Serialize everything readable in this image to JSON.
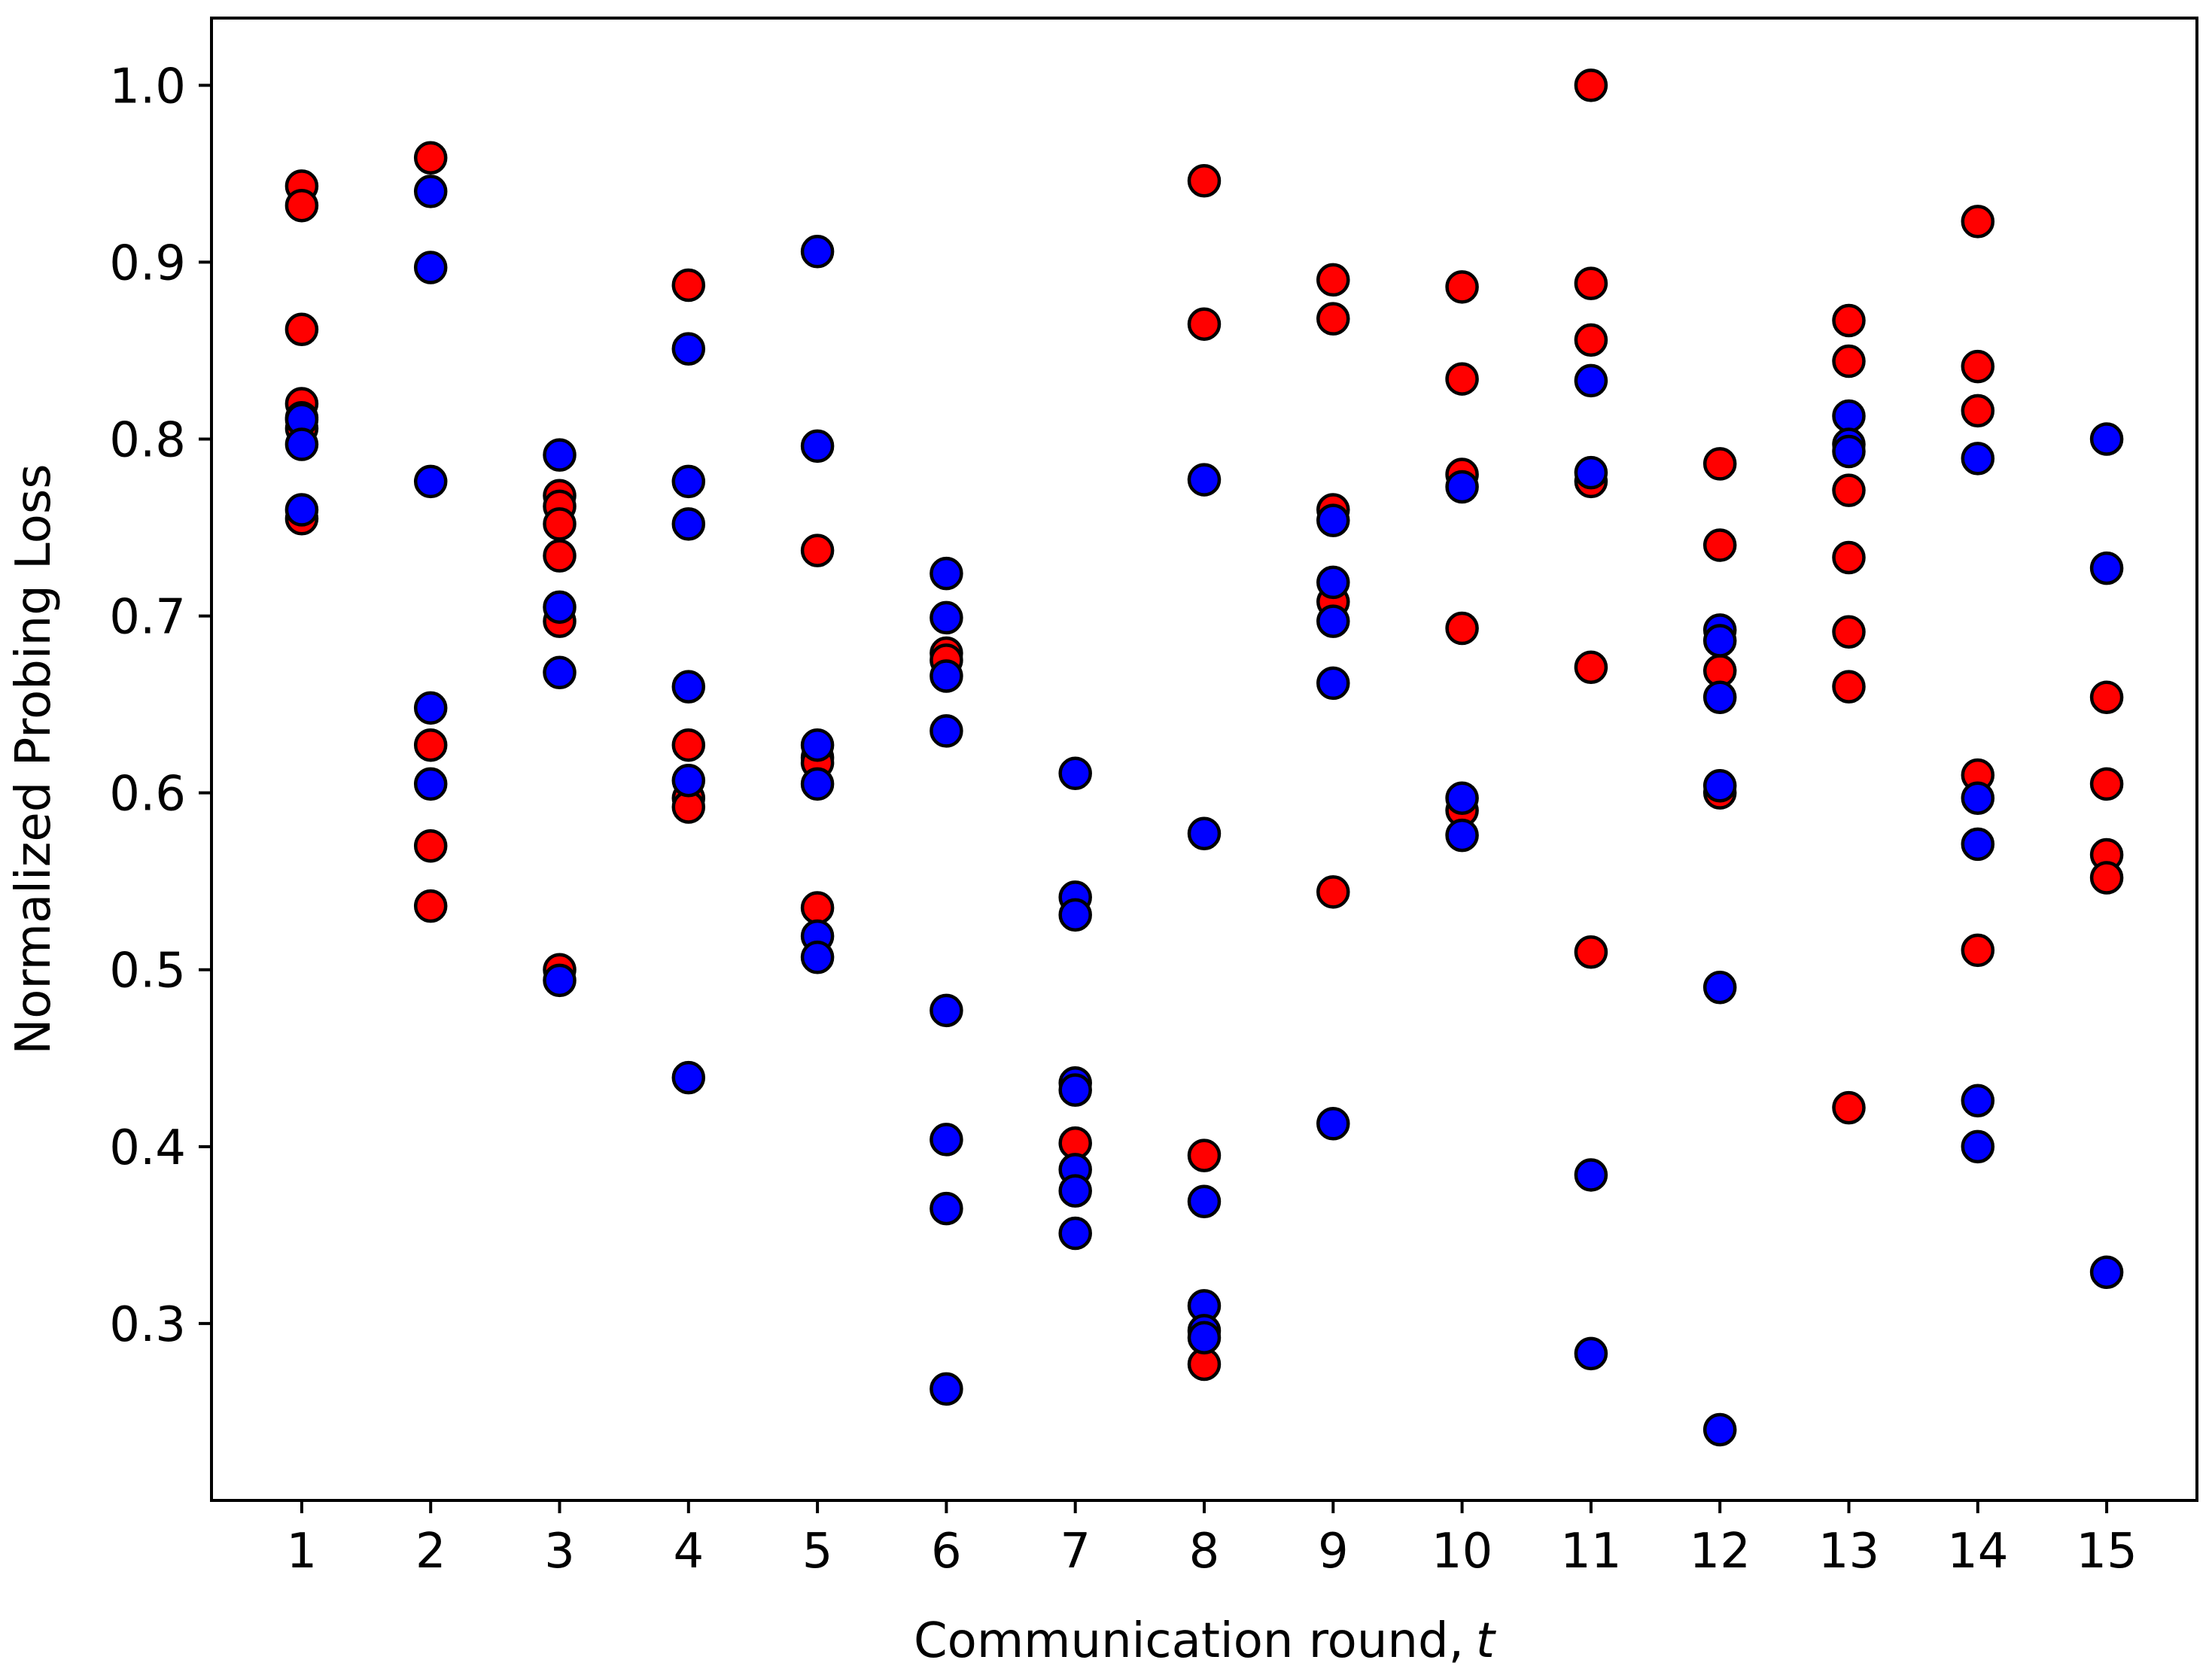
{
  "chart_data": {
    "type": "scatter",
    "title": "",
    "xlabel": "Communication round,",
    "xlabel_var": "t",
    "ylabel": "Normalized Probing Loss",
    "xlim": [
      0.3,
      15.7
    ],
    "ylim": [
      0.2,
      1.038
    ],
    "x_ticks": [
      1,
      2,
      3,
      4,
      5,
      6,
      7,
      8,
      9,
      10,
      11,
      12,
      13,
      14,
      15
    ],
    "x_tick_labels": [
      "1",
      "2",
      "3",
      "4",
      "5",
      "6",
      "7",
      "8",
      "9",
      "10",
      "11",
      "12",
      "13",
      "14",
      "15"
    ],
    "y_ticks": [
      0.3,
      0.4,
      0.5,
      0.6,
      0.7,
      0.8,
      0.9,
      1.0
    ],
    "y_tick_labels": [
      "0.3",
      "0.4",
      "0.5",
      "0.6",
      "0.7",
      "0.8",
      "0.9",
      "1.0"
    ],
    "grid": false,
    "legend": "none",
    "marker_edge_color": "#000000",
    "series": [
      {
        "color": "#ff0000",
        "points": [
          {
            "x": 1,
            "y": [
              0.943,
              0.932,
              0.862,
              0.82,
              0.812,
              0.806,
              0.755
            ]
          },
          {
            "x": 2,
            "y": [
              0.959,
              0.627,
              0.57,
              0.536
            ]
          },
          {
            "x": 3,
            "y": [
              0.768,
              0.762,
              0.752,
              0.734,
              0.697,
              0.5
            ]
          },
          {
            "x": 4,
            "y": [
              0.887,
              0.627,
              0.597,
              0.592
            ]
          },
          {
            "x": 5,
            "y": [
              0.737,
              0.62,
              0.617,
              0.535
            ]
          },
          {
            "x": 6,
            "y": [
              0.679,
              0.675
            ]
          },
          {
            "x": 7,
            "y": [
              0.402
            ]
          },
          {
            "x": 8,
            "y": [
              0.946,
              0.865,
              0.395,
              0.277
            ]
          },
          {
            "x": 9,
            "y": [
              0.89,
              0.868,
              0.76,
              0.708,
              0.544
            ]
          },
          {
            "x": 10,
            "y": [
              0.886,
              0.834,
              0.78,
              0.693,
              0.59
            ]
          },
          {
            "x": 11,
            "y": [
              1.0,
              0.888,
              0.856,
              0.776,
              0.671,
              0.51
            ]
          },
          {
            "x": 12,
            "y": [
              0.786,
              0.74,
              0.669,
              0.6
            ]
          },
          {
            "x": 13,
            "y": [
              0.867,
              0.844,
              0.771,
              0.733,
              0.691,
              0.66,
              0.422
            ]
          },
          {
            "x": 14,
            "y": [
              0.923,
              0.841,
              0.816,
              0.61,
              0.511
            ]
          },
          {
            "x": 15,
            "y": [
              0.654,
              0.605,
              0.565,
              0.552
            ]
          }
        ]
      },
      {
        "color": "#0000ff",
        "points": [
          {
            "x": 1,
            "y": [
              0.811,
              0.797,
              0.76
            ]
          },
          {
            "x": 2,
            "y": [
              0.94,
              0.897,
              0.776,
              0.648,
              0.605
            ]
          },
          {
            "x": 3,
            "y": [
              0.791,
              0.705,
              0.668,
              0.494
            ]
          },
          {
            "x": 4,
            "y": [
              0.851,
              0.776,
              0.752,
              0.66,
              0.607,
              0.439
            ]
          },
          {
            "x": 5,
            "y": [
              0.906,
              0.796,
              0.627,
              0.605,
              0.519,
              0.507
            ]
          },
          {
            "x": 6,
            "y": [
              0.724,
              0.699,
              0.666,
              0.635,
              0.477,
              0.404,
              0.365,
              0.263
            ]
          },
          {
            "x": 7,
            "y": [
              0.611,
              0.541,
              0.531,
              0.436,
              0.432,
              0.387,
              0.375,
              0.351
            ]
          },
          {
            "x": 8,
            "y": [
              0.777,
              0.577,
              0.369,
              0.31,
              0.296,
              0.292
            ]
          },
          {
            "x": 9,
            "y": [
              0.754,
              0.719,
              0.697,
              0.662,
              0.413
            ]
          },
          {
            "x": 10,
            "y": [
              0.773,
              0.597,
              0.576
            ]
          },
          {
            "x": 11,
            "y": [
              0.833,
              0.781,
              0.384,
              0.283
            ]
          },
          {
            "x": 12,
            "y": [
              0.692,
              0.686,
              0.654,
              0.604,
              0.49,
              0.24
            ]
          },
          {
            "x": 13,
            "y": [
              0.813,
              0.797,
              0.793
            ]
          },
          {
            "x": 14,
            "y": [
              0.789,
              0.597,
              0.571,
              0.426,
              0.4
            ]
          },
          {
            "x": 15,
            "y": [
              0.8,
              0.727,
              0.329
            ]
          }
        ]
      }
    ]
  }
}
